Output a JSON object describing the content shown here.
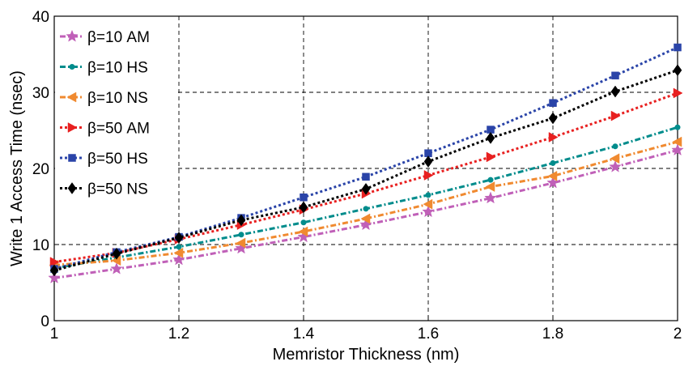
{
  "chart_data": {
    "type": "line",
    "xlabel": "Memristor Thickness (nm)",
    "ylabel": "Write 1 Access Time (nsec)",
    "xlim": [
      1,
      2
    ],
    "ylim": [
      0,
      40
    ],
    "xticks": [
      "1",
      "1.2",
      "1.4",
      "1.6",
      "1.8",
      "2"
    ],
    "yticks": [
      "0",
      "10",
      "20",
      "30",
      "40"
    ],
    "grid": "dashed",
    "legend_position": "top-left",
    "x": [
      1.0,
      1.1,
      1.2,
      1.3,
      1.4,
      1.5,
      1.6,
      1.7,
      1.8,
      1.9,
      2.0
    ],
    "series": [
      {
        "name": "β=10 AM",
        "color": "#c060b8",
        "marker": "star",
        "line": "dashdot",
        "values": [
          5.6,
          6.8,
          8.0,
          9.5,
          11.0,
          12.6,
          14.3,
          16.1,
          18.1,
          20.2,
          22.4
        ]
      },
      {
        "name": "β=10 HS",
        "color": "#008c8c",
        "marker": "dot",
        "line": "dashdot",
        "values": [
          6.9,
          8.3,
          9.7,
          11.3,
          12.9,
          14.7,
          16.5,
          18.5,
          20.7,
          22.9,
          25.4
        ]
      },
      {
        "name": "β=10 NS",
        "color": "#f08a30",
        "marker": "triangle-left",
        "line": "dashdot",
        "values": [
          7.3,
          7.9,
          8.9,
          10.2,
          11.7,
          13.4,
          15.3,
          17.6,
          19.0,
          21.3,
          23.5
        ]
      },
      {
        "name": "β=50 AM",
        "color": "#e82020",
        "marker": "triangle-right",
        "line": "dotted",
        "values": [
          7.7,
          8.9,
          10.7,
          12.6,
          14.6,
          16.7,
          19.1,
          21.5,
          24.1,
          26.9,
          29.9
        ]
      },
      {
        "name": "β=50 HS",
        "color": "#2a44a8",
        "marker": "square",
        "line": "dotted",
        "values": [
          6.8,
          9.0,
          11.0,
          13.5,
          16.2,
          18.9,
          22.0,
          25.1,
          28.6,
          32.2,
          35.9
        ]
      },
      {
        "name": "β=50 NS",
        "color": "#000000",
        "marker": "diamond",
        "line": "dotted",
        "values": [
          6.6,
          8.8,
          10.9,
          13.2,
          14.9,
          17.3,
          20.9,
          24.0,
          26.6,
          30.1,
          32.9
        ]
      }
    ]
  }
}
